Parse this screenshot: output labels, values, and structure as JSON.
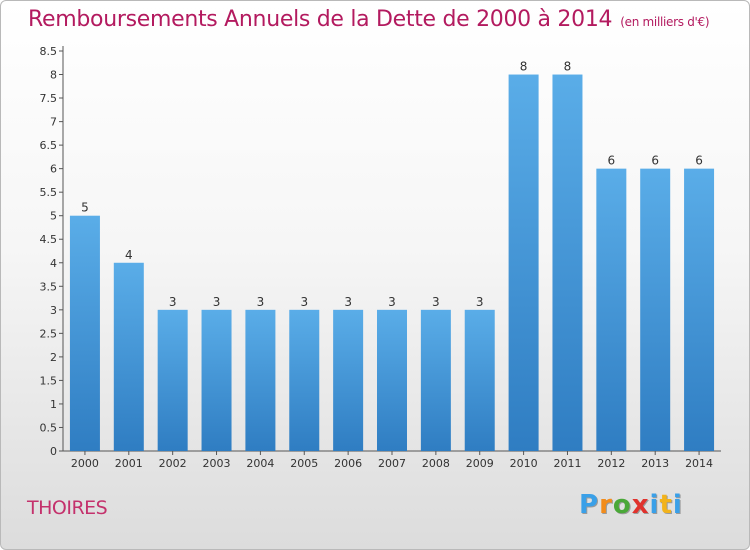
{
  "title": "Remboursements Annuels de la Dette de 2000 à 2014",
  "unit": "(en milliers d'€)",
  "commune": "THOIRES",
  "logo": {
    "letters": [
      "P",
      "r",
      "o",
      "x",
      "i",
      "t",
      "i"
    ],
    "colors": [
      "#3aa0e8",
      "#f28c1b",
      "#4aa838",
      "#e0322d",
      "#3aa0e8",
      "#f2b31b",
      "#3aa0e8"
    ]
  },
  "colors": {
    "bar_light": "#5aade8",
    "bar_dark": "#2f7dc2",
    "title": "#b31a5f"
  },
  "chart_data": {
    "type": "bar",
    "categories": [
      "2000",
      "2001",
      "2002",
      "2003",
      "2004",
      "2005",
      "2006",
      "2007",
      "2008",
      "2009",
      "2010",
      "2011",
      "2012",
      "2013",
      "2014"
    ],
    "values": [
      5,
      4,
      3,
      3,
      3,
      3,
      3,
      3,
      3,
      3,
      8,
      8,
      6,
      6,
      6
    ],
    "data_labels": [
      "5",
      "4",
      "3",
      "3",
      "3",
      "3",
      "3",
      "3",
      "3",
      "3",
      "8",
      "8",
      "6",
      "6",
      "6"
    ],
    "y_ticks": [
      "0",
      "0.5",
      "1",
      "1.5",
      "2",
      "2.5",
      "3",
      "3.5",
      "4",
      "4.5",
      "5",
      "5.5",
      "6",
      "6.5",
      "7",
      "7.5",
      "8",
      "8.5"
    ],
    "ylim": [
      0,
      8.5
    ],
    "grid": false,
    "legend": "none"
  }
}
